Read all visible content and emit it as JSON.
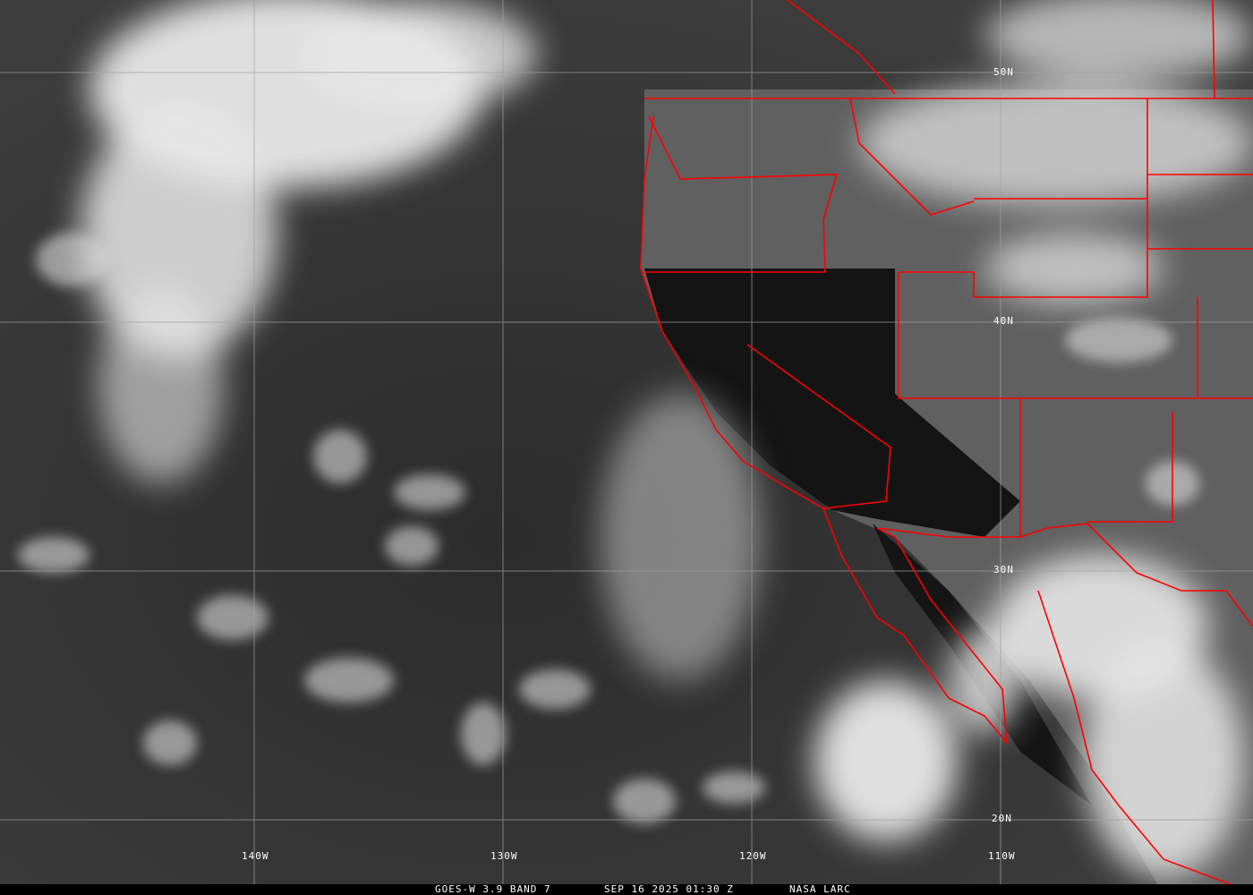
{
  "caption": {
    "satellite_band": "GOES-W 3.9 BAND 7",
    "timestamp": "SEP 16 2025 01:30 Z",
    "source": "NASA LARC"
  },
  "lat_labels": [
    "50N",
    "40N",
    "30N",
    "20N"
  ],
  "lon_labels": [
    "140W",
    "130W",
    "120W",
    "110W"
  ],
  "colors": {
    "borders": "#ff0000",
    "grid": "#a0a0a0",
    "labels": "#ffffff"
  }
}
